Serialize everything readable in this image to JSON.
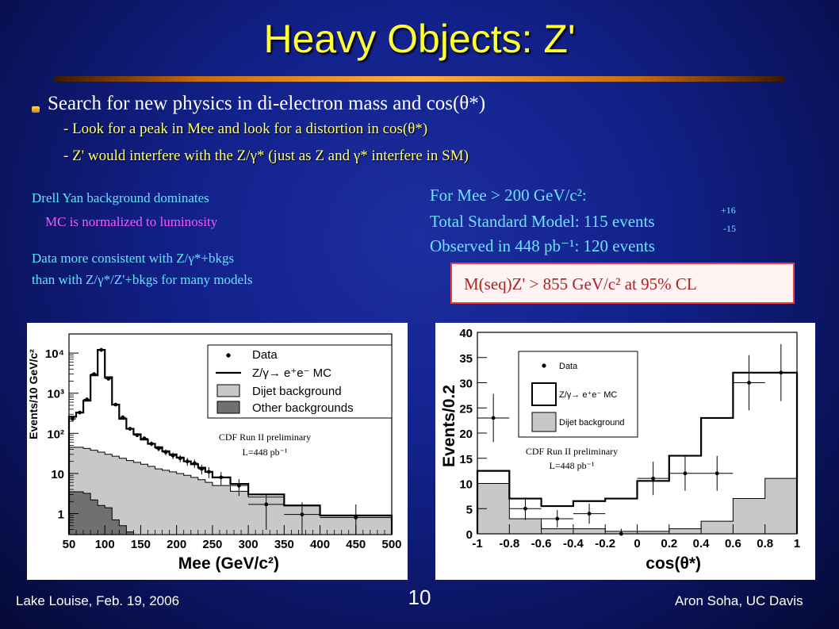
{
  "title": "Heavy Objects:  Z'",
  "bullets": {
    "main": "Search for new physics in di-electron mass and cos(θ*)",
    "sub1": "- Look for a peak in Mee and look for a distortion in cos(θ*)",
    "sub2": "- Z' would interfere with the Z/γ* (just as Z and γ* interfere in SM)"
  },
  "notes": {
    "drell_yan": "Drell Yan background dominates",
    "mc_norm": "MC is normalized to luminosity",
    "consistent1": "Data more consistent with Z/γ*+bkgs",
    "consistent2": "than with Z/γ*/Z'+bkgs for many models"
  },
  "results": {
    "line1": "For Mee > 200 GeV/c²:",
    "line2": "Total Standard Model:  115  events",
    "err_plus": "+16",
    "err_minus": "-15",
    "line3": "Observed in 448 pb⁻¹:  120 events",
    "limit": "M(seq)Z' > 855 GeV/c² at 95% CL"
  },
  "footer": {
    "left": "Lake Louise, Feb. 19, 2006",
    "page": "10",
    "right": "Aron Soha, UC Davis"
  },
  "colors": {
    "title": "#ffff33",
    "sub_bullets": "#ffff66",
    "cyan_notes": "#66e0ff",
    "magenta_notes": "#ff55ff",
    "dijet_fill": "#c8c8c8",
    "other_bkg_fill": "#707070"
  },
  "chart_data": [
    {
      "type": "bar",
      "xlabel": "Mee (GeV/c²)",
      "ylabel": "Events/10 GeV/c²",
      "ylog": true,
      "xlim": [
        50,
        500
      ],
      "ylim": [
        0.3,
        30000
      ],
      "xticks": [
        "50",
        "100",
        "150",
        "200",
        "250",
        "300",
        "350",
        "400",
        "450",
        "500"
      ],
      "yticks": [
        "1",
        "10",
        "10²",
        "10³",
        "10⁴"
      ],
      "annotation": [
        "CDF Run II preliminary",
        "L=448 pb⁻¹"
      ],
      "legend": [
        "Data",
        "Z/γ→ e⁺e⁻ MC",
        "Dijet background",
        "Other backgrounds"
      ],
      "legend_position": "top-right",
      "bin_edges": [
        50,
        60,
        70,
        80,
        90,
        100,
        110,
        120,
        130,
        140,
        150,
        160,
        170,
        180,
        190,
        200,
        210,
        220,
        230,
        240,
        250,
        275,
        300,
        350,
        400,
        500
      ],
      "series": [
        {
          "name": "Z/γ→ e⁺e⁻ MC",
          "values": [
            260,
            330,
            650,
            2800,
            12000,
            2500,
            520,
            230,
            130,
            95,
            70,
            55,
            45,
            36,
            30,
            25,
            20,
            17,
            14,
            11,
            8,
            5.5,
            3,
            1.6,
            0.9
          ]
        },
        {
          "name": "Dijet background",
          "values": [
            45,
            45,
            42,
            38,
            34,
            30,
            27,
            24,
            21,
            19,
            17,
            15,
            13,
            12,
            11,
            10,
            9,
            8,
            7,
            6,
            5,
            3.6,
            2.6,
            1.6,
            0.9
          ]
        },
        {
          "name": "Other backgrounds",
          "values": [
            3.5,
            3.5,
            3.2,
            2.2,
            1.6,
            1.4,
            0.7,
            0.5,
            0.35,
            0.3,
            0.3,
            0.3,
            0.3,
            0.3,
            0.3,
            0.3,
            0.3,
            0.3,
            0.3,
            0.3,
            0.3,
            0.3,
            0.3,
            0.3,
            0.3
          ]
        }
      ],
      "data_points": [
        {
          "x": 55,
          "y": 230
        },
        {
          "x": 65,
          "y": 330
        },
        {
          "x": 75,
          "y": 700
        },
        {
          "x": 85,
          "y": 3000
        },
        {
          "x": 95,
          "y": 12000
        },
        {
          "x": 105,
          "y": 2300
        },
        {
          "x": 115,
          "y": 520
        },
        {
          "x": 125,
          "y": 250
        },
        {
          "x": 135,
          "y": 130
        },
        {
          "x": 145,
          "y": 90
        },
        {
          "x": 155,
          "y": 75
        },
        {
          "x": 165,
          "y": 55
        },
        {
          "x": 175,
          "y": 42
        },
        {
          "x": 185,
          "y": 34
        },
        {
          "x": 195,
          "y": 28
        },
        {
          "x": 205,
          "y": 24
        },
        {
          "x": 215,
          "y": 20
        },
        {
          "x": 225,
          "y": 18
        },
        {
          "x": 235,
          "y": 13
        },
        {
          "x": 245,
          "y": 11
        },
        {
          "x": 262,
          "y": 8
        },
        {
          "x": 287,
          "y": 5
        },
        {
          "x": 325,
          "y": 1.7
        },
        {
          "x": 375,
          "y": 0.95
        },
        {
          "x": 450,
          "y": 0.8
        }
      ]
    },
    {
      "type": "bar",
      "xlabel": "cos(θ*)",
      "ylabel": "Events/0.2",
      "xlim": [
        -1,
        1
      ],
      "ylim": [
        0,
        40
      ],
      "xticks": [
        "-1",
        "-0.8",
        "-0.6",
        "-0.4",
        "-0.2",
        "0",
        "0.2",
        "0.4",
        "0.6",
        "0.8",
        "1"
      ],
      "yticks": [
        "0",
        "5",
        "10",
        "15",
        "20",
        "25",
        "30",
        "35",
        "40"
      ],
      "annotation": [
        "CDF Run II preliminary",
        "L=448 pb⁻¹"
      ],
      "legend": [
        "Data",
        "Z/γ→ e⁺e⁻ MC",
        "Dijet background"
      ],
      "legend_position": "top-center",
      "bin_edges": [
        -1,
        -0.8,
        -0.6,
        -0.4,
        -0.2,
        0,
        0.2,
        0.4,
        0.6,
        0.8,
        1
      ],
      "series": [
        {
          "name": "Z/γ→ e⁺e⁻ MC",
          "values": [
            12.5,
            7,
            5.5,
            6.5,
            7,
            10.5,
            15.5,
            23,
            32,
            32
          ]
        },
        {
          "name": "Dijet background",
          "values": [
            10,
            3,
            1,
            1,
            0.5,
            0.5,
            1,
            2.5,
            7,
            11
          ]
        }
      ],
      "data_points": [
        {
          "x": -0.9,
          "y": 23
        },
        {
          "x": -0.7,
          "y": 5
        },
        {
          "x": -0.5,
          "y": 3
        },
        {
          "x": -0.3,
          "y": 4
        },
        {
          "x": -0.1,
          "y": 0
        },
        {
          "x": 0.1,
          "y": 11
        },
        {
          "x": 0.3,
          "y": 12
        },
        {
          "x": 0.5,
          "y": 12
        },
        {
          "x": 0.7,
          "y": 30
        },
        {
          "x": 0.9,
          "y": 32
        }
      ]
    }
  ]
}
